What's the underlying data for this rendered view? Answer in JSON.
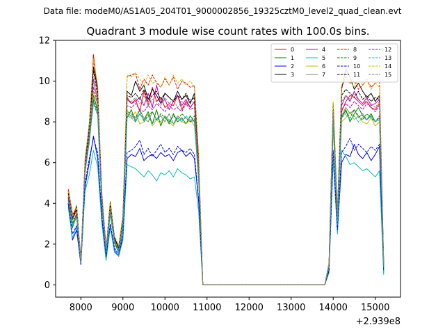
{
  "figure": {
    "suptitle": "Data file: modeM0/AS1A05_204T01_9000002856_19325cztM0_level2_quad_clean.evt",
    "title": "Quadrant 3 module wise count rates with 100.0s bins.",
    "x_offset_label": "+2.939e8"
  },
  "chart_data": {
    "type": "line",
    "title": "Quadrant 3 module wise count rates with 100.0s bins.",
    "xlabel": "",
    "ylabel": "",
    "x_offset": 293900000,
    "xlim": [
      7400,
      15600
    ],
    "ylim": [
      -0.6,
      12
    ],
    "xticks": [
      8000,
      9000,
      10000,
      11000,
      12000,
      13000,
      14000,
      15000
    ],
    "yticks": [
      0,
      2,
      4,
      6,
      8,
      10,
      12
    ],
    "grid": false,
    "legend_position": "top-right",
    "x": [
      7700,
      7800,
      7900,
      8000,
      8100,
      8200,
      8300,
      8400,
      8500,
      8600,
      8700,
      8800,
      8900,
      9000,
      9100,
      9200,
      9300,
      9400,
      9500,
      9600,
      9700,
      9800,
      9900,
      10000,
      10100,
      10200,
      10300,
      10400,
      10500,
      10600,
      10700,
      10800,
      10900,
      13800,
      13900,
      14000,
      14100,
      14200,
      14300,
      14400,
      14500,
      14600,
      14700,
      14800,
      14900,
      15000,
      15100,
      15200
    ],
    "series": [
      {
        "name": "0",
        "color": "#ff0000",
        "dash": false,
        "values": [
          4.7,
          3.5,
          3.6,
          1.2,
          5.8,
          7.5,
          11.3,
          9.4,
          4.4,
          1.8,
          3.9,
          2.3,
          1.9,
          3.2,
          9.2,
          8.9,
          9.1,
          8.5,
          9.5,
          8.8,
          9.7,
          9.0,
          9.2,
          8.7,
          8.9,
          8.8,
          9.3,
          8.6,
          9.0,
          8.7,
          9.0,
          5.8,
          0.0,
          0.0,
          1.0,
          8.6,
          3.3,
          8.5,
          9.0,
          9.3,
          9.2,
          9.0,
          8.8,
          9.0,
          8.7,
          8.6,
          8.9,
          1.0
        ]
      },
      {
        "name": "1",
        "color": "#008000",
        "dash": false,
        "values": [
          4.2,
          2.8,
          3.4,
          1.1,
          5.6,
          7.0,
          9.3,
          8.6,
          3.8,
          1.6,
          3.5,
          2.1,
          1.6,
          2.9,
          8.2,
          8.6,
          8.0,
          8.4,
          8.1,
          8.5,
          7.9,
          8.6,
          7.8,
          8.3,
          7.9,
          8.4,
          8.0,
          8.2,
          7.9,
          8.3,
          8.0,
          5.1,
          0.0,
          0.0,
          0.9,
          7.8,
          3.0,
          8.2,
          8.6,
          8.0,
          8.4,
          8.7,
          8.3,
          8.1,
          8.4,
          8.0,
          8.2,
          0.8
        ]
      },
      {
        "name": "2",
        "color": "#0000ff",
        "dash": false,
        "values": [
          4.0,
          2.2,
          2.7,
          1.0,
          4.8,
          6.0,
          7.3,
          6.2,
          3.2,
          1.3,
          2.9,
          1.7,
          1.4,
          2.4,
          6.2,
          6.4,
          6.3,
          6.7,
          6.1,
          6.3,
          6.4,
          6.2,
          6.5,
          6.3,
          6.4,
          6.1,
          6.5,
          6.6,
          6.3,
          6.5,
          6.2,
          4.1,
          0.0,
          0.0,
          0.7,
          6.2,
          2.6,
          6.0,
          6.4,
          6.3,
          6.9,
          6.4,
          6.2,
          6.5,
          6.1,
          6.4,
          6.8,
          0.6
        ]
      },
      {
        "name": "3",
        "color": "#000000",
        "dash": false,
        "values": [
          4.6,
          3.2,
          3.9,
          1.2,
          6.0,
          7.9,
          10.7,
          9.6,
          4.2,
          1.7,
          4.1,
          2.3,
          1.8,
          3.3,
          9.5,
          9.3,
          10.0,
          9.5,
          9.8,
          9.1,
          9.6,
          9.3,
          8.9,
          9.4,
          9.2,
          9.0,
          9.5,
          9.1,
          9.3,
          8.9,
          9.4,
          6.0,
          0.0,
          0.0,
          1.0,
          8.9,
          3.5,
          9.6,
          10.6,
          10.2,
          9.6,
          9.9,
          9.5,
          9.2,
          9.4,
          9.0,
          9.3,
          1.1
        ]
      },
      {
        "name": "4",
        "color": "#bf00bf",
        "dash": false,
        "values": [
          4.4,
          3.3,
          3.6,
          1.1,
          5.9,
          7.6,
          10.1,
          9.0,
          4.3,
          1.8,
          3.8,
          2.2,
          1.7,
          3.1,
          9.1,
          8.9,
          9.0,
          9.2,
          8.8,
          9.4,
          8.7,
          9.8,
          8.9,
          9.1,
          8.6,
          9.0,
          9.3,
          8.8,
          9.1,
          8.7,
          9.0,
          5.7,
          0.0,
          0.0,
          1.0,
          8.3,
          3.2,
          8.8,
          9.3,
          9.0,
          9.5,
          9.1,
          8.9,
          9.2,
          8.8,
          8.9,
          9.1,
          1.0
        ]
      },
      {
        "name": "5",
        "color": "#00bfbf",
        "dash": false,
        "values": [
          3.8,
          2.3,
          2.9,
          1.0,
          4.6,
          5.4,
          6.6,
          5.8,
          3.0,
          1.2,
          2.8,
          1.6,
          1.4,
          2.2,
          5.9,
          5.8,
          5.7,
          5.5,
          5.3,
          5.6,
          5.4,
          5.1,
          5.5,
          5.4,
          5.6,
          5.3,
          5.7,
          5.5,
          5.4,
          5.2,
          5.3,
          3.6,
          0.0,
          0.0,
          0.6,
          6.2,
          2.5,
          6.6,
          6.3,
          5.9,
          6.0,
          5.8,
          5.6,
          5.7,
          5.5,
          5.3,
          5.6,
          0.5
        ]
      },
      {
        "name": "6",
        "color": "#bfbf00",
        "dash": false,
        "values": [
          4.1,
          3.1,
          3.3,
          1.2,
          5.7,
          7.3,
          9.5,
          8.8,
          4.1,
          1.7,
          3.7,
          2.2,
          1.7,
          3.0,
          8.6,
          8.2,
          8.5,
          7.9,
          8.0,
          8.4,
          7.8,
          8.1,
          7.9,
          8.3,
          8.0,
          7.8,
          8.2,
          8.0,
          7.9,
          8.1,
          7.8,
          5.3,
          0.0,
          0.0,
          0.9,
          7.9,
          3.1,
          8.0,
          8.2,
          8.5,
          8.1,
          8.3,
          8.0,
          7.9,
          8.2,
          7.8,
          8.0,
          0.9
        ]
      },
      {
        "name": "7",
        "color": "#808080",
        "dash": false,
        "values": [
          4.3,
          2.9,
          3.5,
          1.1,
          5.5,
          7.1,
          9.0,
          8.4,
          3.9,
          1.6,
          3.6,
          2.1,
          1.6,
          2.8,
          8.4,
          8.3,
          8.1,
          8.6,
          8.2,
          8.0,
          8.5,
          8.1,
          8.3,
          8.0,
          8.4,
          7.9,
          8.3,
          8.1,
          8.2,
          8.0,
          8.1,
          5.2,
          0.0,
          0.0,
          0.9,
          8.0,
          3.0,
          8.3,
          8.7,
          8.4,
          8.6,
          8.2,
          8.4,
          8.1,
          8.3,
          8.0,
          8.2,
          0.9
        ]
      },
      {
        "name": "8",
        "color": "#ff0000",
        "dash": true,
        "values": [
          4.5,
          3.4,
          3.8,
          1.2,
          6.1,
          7.8,
          11.0,
          9.7,
          4.5,
          1.8,
          4.0,
          2.4,
          1.9,
          3.4,
          10.2,
          10.3,
          10.4,
          9.6,
          10.1,
          9.8,
          10.3,
          9.9,
          9.7,
          10.1,
          9.8,
          10.2,
          9.6,
          10.0,
          9.9,
          9.7,
          9.8,
          6.3,
          0.0,
          0.0,
          1.1,
          8.7,
          3.6,
          9.7,
          10.2,
          9.9,
          10.0,
          9.6,
          9.8,
          10.1,
          9.7,
          9.9,
          10.0,
          1.1
        ]
      },
      {
        "name": "9",
        "color": "#008000",
        "dash": true,
        "values": [
          4.3,
          3.0,
          3.5,
          1.1,
          5.7,
          7.2,
          9.1,
          8.5,
          3.9,
          1.6,
          3.6,
          2.1,
          1.6,
          2.9,
          8.5,
          8.4,
          8.2,
          8.6,
          8.0,
          8.3,
          8.5,
          8.1,
          8.4,
          8.2,
          8.0,
          8.3,
          8.1,
          8.4,
          8.2,
          8.0,
          8.3,
          5.3,
          0.0,
          0.0,
          0.9,
          8.1,
          3.1,
          8.3,
          8.5,
          8.2,
          8.6,
          8.3,
          8.1,
          8.4,
          8.2,
          8.0,
          8.3,
          0.9
        ]
      },
      {
        "name": "10",
        "color": "#0000ff",
        "dash": true,
        "values": [
          4.0,
          2.5,
          2.9,
          1.0,
          5.0,
          6.2,
          7.2,
          6.5,
          3.4,
          1.4,
          3.0,
          1.8,
          1.5,
          2.5,
          6.5,
          6.6,
          6.8,
          7.1,
          6.4,
          6.7,
          6.3,
          6.6,
          6.9,
          6.5,
          6.7,
          6.4,
          6.8,
          6.6,
          6.5,
          6.7,
          6.4,
          4.2,
          0.0,
          0.0,
          0.7,
          6.6,
          2.7,
          6.5,
          6.8,
          7.2,
          6.6,
          6.9,
          6.7,
          6.5,
          6.8,
          6.6,
          6.9,
          0.7
        ]
      },
      {
        "name": "11",
        "color": "#000000",
        "dash": true,
        "values": [
          4.5,
          3.3,
          3.7,
          1.2,
          5.9,
          7.7,
          10.5,
          9.3,
          4.2,
          1.7,
          4.0,
          2.3,
          1.8,
          3.3,
          9.3,
          9.2,
          9.4,
          9.1,
          9.6,
          9.0,
          9.3,
          9.5,
          9.1,
          9.4,
          9.2,
          9.0,
          9.3,
          9.1,
          9.4,
          9.0,
          9.2,
          5.9,
          0.0,
          0.0,
          1.0,
          8.8,
          3.4,
          9.3,
          9.6,
          9.4,
          9.2,
          9.5,
          9.1,
          9.3,
          9.0,
          9.2,
          9.1,
          1.0
        ]
      },
      {
        "name": "12",
        "color": "#bf00bf",
        "dash": true,
        "values": [
          4.2,
          3.2,
          3.4,
          1.1,
          5.7,
          7.4,
          9.7,
          8.9,
          4.1,
          1.7,
          3.7,
          2.2,
          1.7,
          3.0,
          8.8,
          8.7,
          8.9,
          8.6,
          8.5,
          8.8,
          8.6,
          8.9,
          8.7,
          8.5,
          8.8,
          8.6,
          8.7,
          8.5,
          8.9,
          8.6,
          8.7,
          5.5,
          0.0,
          0.0,
          0.9,
          8.4,
          3.2,
          8.6,
          8.9,
          8.7,
          9.0,
          8.8,
          8.6,
          8.9,
          8.7,
          8.5,
          8.8,
          1.0
        ]
      },
      {
        "name": "13",
        "color": "#00bfbf",
        "dash": true,
        "values": [
          4.1,
          2.9,
          3.3,
          1.1,
          5.5,
          7.0,
          8.9,
          8.3,
          3.8,
          1.6,
          3.5,
          2.0,
          1.6,
          2.8,
          8.3,
          8.2,
          8.0,
          8.4,
          8.1,
          8.3,
          7.9,
          8.2,
          8.0,
          8.3,
          8.1,
          7.9,
          8.2,
          8.0,
          8.3,
          8.1,
          8.0,
          5.2,
          0.0,
          0.0,
          0.9,
          8.0,
          3.0,
          8.2,
          8.4,
          8.1,
          8.3,
          8.0,
          8.2,
          8.1,
          8.3,
          8.0,
          8.1,
          0.9
        ]
      },
      {
        "name": "14",
        "color": "#bfbf00",
        "dash": true,
        "values": [
          4.6,
          3.4,
          3.9,
          1.2,
          6.2,
          7.9,
          11.1,
          9.8,
          4.4,
          1.8,
          4.1,
          2.4,
          1.9,
          3.4,
          10.3,
          10.2,
          10.4,
          10.1,
          9.8,
          10.3,
          9.9,
          10.0,
          9.7,
          10.2,
          9.8,
          10.3,
          9.9,
          10.1,
          9.8,
          10.0,
          9.7,
          6.4,
          0.0,
          0.0,
          1.1,
          9.0,
          3.6,
          9.8,
          10.3,
          10.0,
          9.7,
          10.1,
          9.8,
          10.0,
          9.6,
          9.9,
          9.7,
          1.1
        ]
      },
      {
        "name": "15",
        "color": "#808080",
        "dash": true,
        "values": [
          4.4,
          3.2,
          3.6,
          1.1,
          5.8,
          7.5,
          10.0,
          9.1,
          4.2,
          1.7,
          3.8,
          2.2,
          1.7,
          3.1,
          9.1,
          9.0,
          9.2,
          8.9,
          9.3,
          8.8,
          9.1,
          9.0,
          8.8,
          9.2,
          8.9,
          9.1,
          8.7,
          9.0,
          8.8,
          9.1,
          8.9,
          5.7,
          0.0,
          0.0,
          1.0,
          8.5,
          3.3,
          9.0,
          9.3,
          9.1,
          9.4,
          9.0,
          8.8,
          9.1,
          8.9,
          8.7,
          9.0,
          1.0
        ]
      }
    ]
  }
}
